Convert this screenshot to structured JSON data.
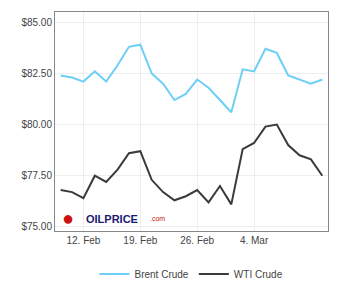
{
  "chart_data": {
    "type": "line",
    "categories": [
      null,
      null,
      "12. Feb",
      null,
      null,
      null,
      null,
      "19. Feb",
      null,
      null,
      null,
      null,
      "26. Feb",
      null,
      null,
      null,
      null,
      "4. Mar",
      null,
      null,
      null,
      null,
      null,
      null
    ],
    "series": [
      {
        "name": "Brent Crude",
        "color": "#6dcff6",
        "values": [
          82.4,
          82.3,
          82.1,
          82.6,
          82.1,
          82.9,
          83.8,
          83.9,
          82.5,
          82.0,
          81.2,
          81.5,
          82.2,
          81.8,
          81.2,
          80.6,
          82.7,
          82.6,
          83.7,
          83.5,
          82.4,
          82.2,
          82.0,
          82.2
        ]
      },
      {
        "name": "WTI Crude",
        "color": "#3a3a3a",
        "values": [
          76.8,
          76.7,
          76.4,
          77.5,
          77.2,
          77.8,
          78.6,
          78.7,
          77.3,
          76.7,
          76.3,
          76.5,
          76.8,
          76.2,
          77.0,
          76.1,
          78.8,
          79.1,
          79.9,
          80.0,
          79.0,
          78.5,
          78.3,
          77.5
        ]
      }
    ],
    "ylim": [
      74.8,
      85.5
    ],
    "yticks": [
      {
        "value": 75.0,
        "label": "$75.00"
      },
      {
        "value": 77.5,
        "label": "$77.50"
      },
      {
        "value": 80.0,
        "label": "$80.00"
      },
      {
        "value": 82.5,
        "label": "$82.50"
      },
      {
        "value": 85.0,
        "label": "$85.00"
      }
    ],
    "grid": true,
    "legend": "bottom",
    "annotations": [
      {
        "text": "●",
        "color": "#cc1111"
      },
      {
        "text": "OILPRICE",
        "color": "#1a1a72"
      },
      {
        "text": ".com",
        "color": "#cc1111"
      }
    ]
  }
}
